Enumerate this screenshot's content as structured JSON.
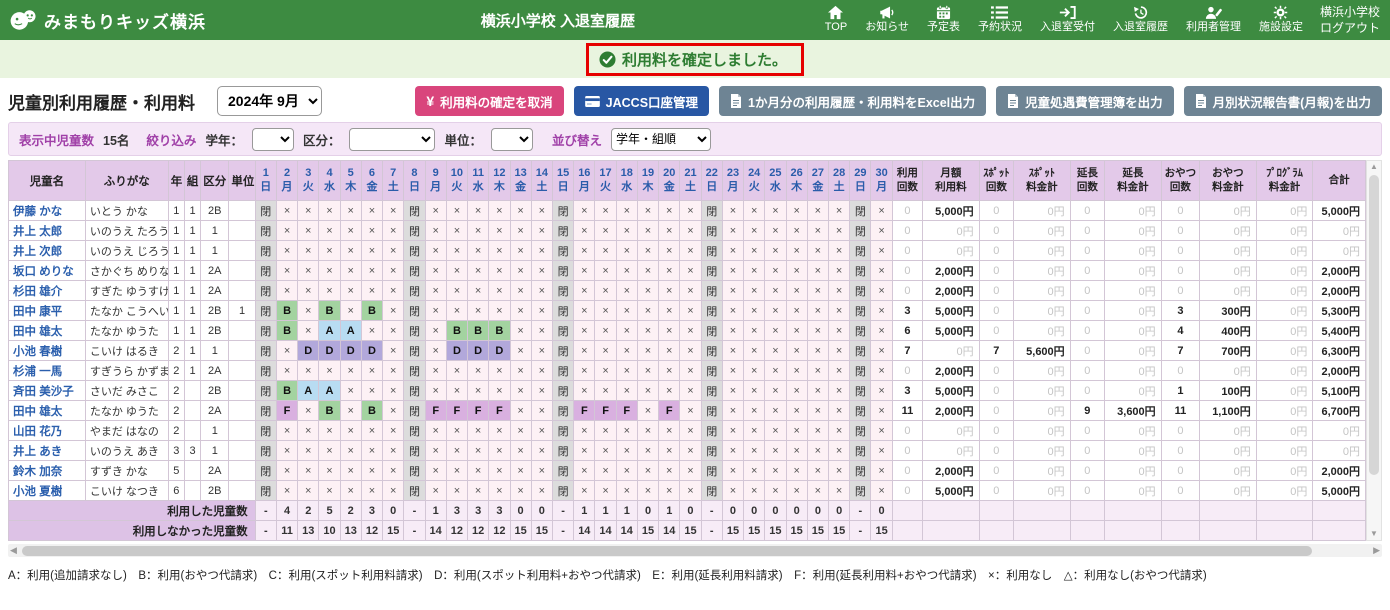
{
  "header": {
    "logo": "みまもりキッズ横浜",
    "title": "横浜小学校 入退室履歴",
    "nav": [
      {
        "id": "top",
        "icon": "home-icon",
        "label": "TOP"
      },
      {
        "id": "news",
        "icon": "megaphone-icon",
        "label": "お知らせ"
      },
      {
        "id": "schedule",
        "icon": "calendar-icon",
        "label": "予定表"
      },
      {
        "id": "booking",
        "icon": "list-icon",
        "label": "予約状況"
      },
      {
        "id": "checkin",
        "icon": "enter-door-icon",
        "label": "入退室受付"
      },
      {
        "id": "history",
        "icon": "history-icon",
        "label": "入退室履歴"
      },
      {
        "id": "users",
        "icon": "user-edit-icon",
        "label": "利用者管理"
      },
      {
        "id": "settings",
        "icon": "gear-icon",
        "label": "施設設定"
      }
    ],
    "school_name": "横浜小学校",
    "logout_label": "ログアウト"
  },
  "banner": {
    "message": "利用料を確定しました。"
  },
  "toolbar": {
    "page_title": "児童別利用履歴・利用料",
    "month_value": "2024年 9月",
    "cancel_button": "利用料の確定を取消",
    "jaccs_button": "JACCS口座管理",
    "excel_button": "1か月分の利用履歴・利用料をExcel出力",
    "kanribo_button": "児童処遇費管理簿を出力",
    "geppou_button": "月別状況報告書(月報)を出力"
  },
  "filter": {
    "count_label": "表示中児童数",
    "count_value": "15名",
    "narrow_label": "絞り込み",
    "grade_label": "学年：",
    "kubun_label": "区分：",
    "unit_label": "単位：",
    "sort_label": "並び替え",
    "sort_value": "学年・組順"
  },
  "table": {
    "info_columns": [
      "児童名",
      "ふりがな",
      "年",
      "組",
      "区分",
      "単位"
    ],
    "day_numbers": [
      "1",
      "2",
      "3",
      "4",
      "5",
      "6",
      "7",
      "8",
      "9",
      "10",
      "11",
      "12",
      "13",
      "14",
      "15",
      "16",
      "17",
      "18",
      "19",
      "20",
      "21",
      "22",
      "23",
      "24",
      "25",
      "26",
      "27",
      "28",
      "29",
      "30"
    ],
    "day_weekdays": [
      "日",
      "月",
      "火",
      "水",
      "木",
      "金",
      "土",
      "日",
      "月",
      "火",
      "水",
      "木",
      "金",
      "土",
      "日",
      "月",
      "火",
      "水",
      "木",
      "金",
      "土",
      "日",
      "月",
      "火",
      "水",
      "木",
      "金",
      "土",
      "日",
      "月"
    ],
    "tail_columns": [
      [
        "利用",
        "回数"
      ],
      [
        "月額",
        "利用料"
      ],
      [
        "ｽﾎﾟｯﾄ",
        "回数"
      ],
      [
        "ｽﾎﾟｯﾄ",
        "料金計"
      ],
      [
        "延長",
        "回数"
      ],
      [
        "延長",
        "料金計"
      ],
      [
        "おやつ",
        "回数"
      ],
      [
        "おやつ",
        "料金計"
      ],
      [
        "ﾌﾟﾛｸﾞﾗﾑ",
        "料金計"
      ],
      [
        "合計"
      ]
    ],
    "rows": [
      {
        "name": "伊藤 かな",
        "kana": "いとう かな",
        "grade": "1",
        "class": "1",
        "kubun": "2B",
        "unit": "",
        "days": "閉××××××閉××××××閉××××××閉××××××閉×",
        "stats": [
          "0",
          "5,000円",
          "0",
          "0円",
          "0",
          "0円",
          "0",
          "0円",
          "0円",
          "5,000円"
        ]
      },
      {
        "name": "井上 太郎",
        "kana": "いのうえ たろう",
        "grade": "1",
        "class": "1",
        "kubun": "1",
        "unit": "",
        "days": "閉××××××閉××××××閉××××××閉××××××閉×",
        "stats": [
          "0",
          "0円",
          "0",
          "0円",
          "0",
          "0円",
          "0",
          "0円",
          "0円",
          "0円"
        ]
      },
      {
        "name": "井上 次郎",
        "kana": "いのうえ じろう",
        "grade": "1",
        "class": "1",
        "kubun": "1",
        "unit": "",
        "days": "閉××××××閉××××××閉××××××閉××××××閉×",
        "stats": [
          "0",
          "0円",
          "0",
          "0円",
          "0",
          "0円",
          "0",
          "0円",
          "0円",
          "0円"
        ]
      },
      {
        "name": "坂口 めりな",
        "kana": "さかぐち めりな",
        "grade": "1",
        "class": "1",
        "kubun": "2A",
        "unit": "",
        "days": "閉××××××閉××××××閉××××××閉××××××閉×",
        "stats": [
          "0",
          "2,000円",
          "0",
          "0円",
          "0",
          "0円",
          "0",
          "0円",
          "0円",
          "2,000円"
        ]
      },
      {
        "name": "杉田 雄介",
        "kana": "すぎた ゆうすけ",
        "grade": "1",
        "class": "1",
        "kubun": "2A",
        "unit": "",
        "days": "閉××××××閉××××××閉××××××閉××××××閉×",
        "stats": [
          "0",
          "2,000円",
          "0",
          "0円",
          "0",
          "0円",
          "0",
          "0円",
          "0円",
          "2,000円"
        ]
      },
      {
        "name": "田中 康平",
        "kana": "たなか こうへい",
        "grade": "1",
        "class": "1",
        "kubun": "2B",
        "unit": "1",
        "days": "閉B×B×B×閉××××××閉××××××閉××××××閉×",
        "stats": [
          "3",
          "5,000円",
          "0",
          "0円",
          "0",
          "0円",
          "3",
          "300円",
          "0円",
          "5,300円"
        ]
      },
      {
        "name": "田中 雄太",
        "kana": "たなか ゆうた",
        "grade": "1",
        "class": "1",
        "kubun": "2B",
        "unit": "",
        "days": "閉B×AA××閉×BBB××閉××××××閉××××××閉×",
        "stats": [
          "6",
          "5,000円",
          "0",
          "0円",
          "0",
          "0円",
          "4",
          "400円",
          "0円",
          "5,400円"
        ]
      },
      {
        "name": "小池 春樹",
        "kana": "こいけ はるき",
        "grade": "2",
        "class": "1",
        "kubun": "1",
        "unit": "",
        "days": "閉×DDDD×閉×DDD××閉××××××閉××××××閉×",
        "stats": [
          "7",
          "0円",
          "7",
          "5,600円",
          "0",
          "0円",
          "7",
          "700円",
          "0円",
          "6,300円"
        ]
      },
      {
        "name": "杉浦 一馬",
        "kana": "すぎうら かずま",
        "grade": "2",
        "class": "1",
        "kubun": "2A",
        "unit": "",
        "days": "閉××××××閉××××××閉××××××閉××××××閉×",
        "stats": [
          "0",
          "2,000円",
          "0",
          "0円",
          "0",
          "0円",
          "0",
          "0円",
          "0円",
          "2,000円"
        ]
      },
      {
        "name": "斉田 美沙子",
        "kana": "さいだ みさこ",
        "grade": "2",
        "class": "",
        "kubun": "2B",
        "unit": "",
        "days": "閉BAA×××閉××××××閉××××××閉××××××閉×",
        "stats": [
          "3",
          "5,000円",
          "0",
          "0円",
          "0",
          "0円",
          "1",
          "100円",
          "0円",
          "5,100円"
        ]
      },
      {
        "name": "田中 雄太",
        "kana": "たなか ゆうた",
        "grade": "2",
        "class": "",
        "kubun": "2A",
        "unit": "",
        "days": "閉F×B×B×閉FFFF××閉FFF×F×閉××××××閉×",
        "stats": [
          "11",
          "2,000円",
          "0",
          "0円",
          "9",
          "3,600円",
          "11",
          "1,100円",
          "0円",
          "6,700円"
        ]
      },
      {
        "name": "山田 花乃",
        "kana": "やまだ はなの",
        "grade": "2",
        "class": "",
        "kubun": "1",
        "unit": "",
        "days": "閉××××××閉××××××閉××××××閉××××××閉×",
        "stats": [
          "0",
          "0円",
          "0",
          "0円",
          "0",
          "0円",
          "0",
          "0円",
          "0円",
          "0円"
        ]
      },
      {
        "name": "井上 あき",
        "kana": "いのうえ あき",
        "grade": "3",
        "class": "3",
        "kubun": "1",
        "unit": "",
        "days": "閉××××××閉××××××閉××××××閉××××××閉×",
        "stats": [
          "0",
          "0円",
          "0",
          "0円",
          "0",
          "0円",
          "0",
          "0円",
          "0円",
          "0円"
        ]
      },
      {
        "name": "鈴木 加奈",
        "kana": "すずき かな",
        "grade": "5",
        "class": "",
        "kubun": "2A",
        "unit": "",
        "days": "閉××××××閉××××××閉××××××閉××××××閉×",
        "stats": [
          "0",
          "2,000円",
          "0",
          "0円",
          "0",
          "0円",
          "0",
          "0円",
          "0円",
          "2,000円"
        ]
      },
      {
        "name": "小池 夏樹",
        "kana": "こいけ なつき",
        "grade": "6",
        "class": "",
        "kubun": "2B",
        "unit": "",
        "days": "閉××××××閉××××××閉××××××閉××××××閉×",
        "stats": [
          "0",
          "5,000円",
          "0",
          "0円",
          "0",
          "0円",
          "0",
          "0円",
          "0円",
          "5,000円"
        ]
      }
    ],
    "summary": [
      {
        "label": "利用した児童数",
        "values": [
          "-",
          "4",
          "2",
          "5",
          "2",
          "3",
          "0",
          "-",
          "1",
          "3",
          "3",
          "3",
          "0",
          "0",
          "-",
          "1",
          "1",
          "1",
          "0",
          "1",
          "0",
          "-",
          "0",
          "0",
          "0",
          "0",
          "0",
          "0",
          "-",
          "0"
        ]
      },
      {
        "label": "利用しなかった児童数",
        "values": [
          "-",
          "11",
          "13",
          "10",
          "13",
          "12",
          "15",
          "-",
          "14",
          "12",
          "12",
          "12",
          "15",
          "15",
          "-",
          "14",
          "14",
          "14",
          "15",
          "14",
          "15",
          "-",
          "15",
          "15",
          "15",
          "15",
          "15",
          "15",
          "-",
          "15"
        ]
      }
    ]
  },
  "legend": "A：利用(追加請求なし)　B：利用(おやつ代請求)　C：利用(スポット利用料請求)　D：利用(スポット利用料+おやつ代請求)　E：利用(延長利用料請求)　F：利用(延長利用料+おやつ代請求)　×：利用なし　△：利用なし(おやつ代請求)",
  "colors": {
    "header_green": "#3d8b41",
    "banner_bg": "#e9f4df",
    "message_green": "#2e7d32",
    "highlight_red": "#e60000",
    "button_pink": "#d9457c",
    "button_blue": "#2857a4",
    "button_gray": "#6e8494",
    "filter_purple": "#a040a8",
    "table_header_bg": "#e3c9e9",
    "day_header_blue": "#2a5caa",
    "student_link_blue": "#2b5fad",
    "cell_closed": "#dcdcdc",
    "cell_none": "#fdf1f5",
    "cell_a_blue": "#b8dcf2",
    "cell_b_green": "#a3d3a0",
    "cell_d_purple": "#b2a8db",
    "cell_f_lilac": "#d9b0e0",
    "summary_label_bg": "#ddc2e6"
  }
}
